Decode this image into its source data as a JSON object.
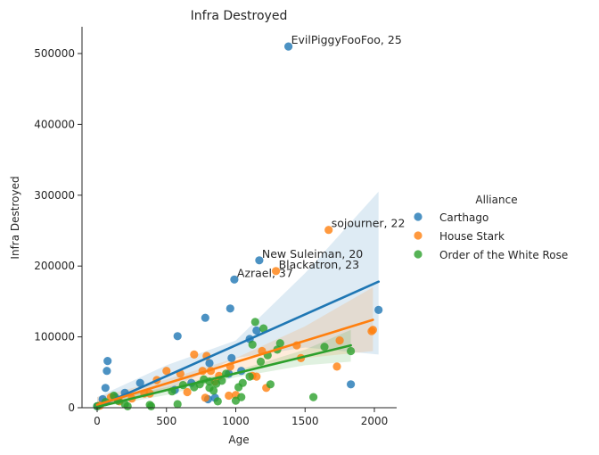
{
  "chart_data": {
    "type": "scatter",
    "title": "Infra Destroyed",
    "xlabel": "Age",
    "ylabel": "Infra Destroyed",
    "xlim": [
      -80,
      2160
    ],
    "ylim": [
      0,
      535000
    ],
    "xticks": [
      0,
      500,
      1000,
      1500,
      2000
    ],
    "yticks": [
      0,
      100000,
      200000,
      300000,
      400000,
      500000
    ],
    "grid": false,
    "legend": {
      "title": "Alliance",
      "placement": "right"
    },
    "series": [
      {
        "name": "Carthago",
        "color": "#1f77b4",
        "points": [
          [
            0,
            2000
          ],
          [
            40,
            12000
          ],
          [
            60,
            28000
          ],
          [
            70,
            52000
          ],
          [
            75,
            66000
          ],
          [
            130,
            15000
          ],
          [
            200,
            21000
          ],
          [
            310,
            35000
          ],
          [
            560,
            25000
          ],
          [
            580,
            101000
          ],
          [
            680,
            35000
          ],
          [
            780,
            127000
          ],
          [
            800,
            12000
          ],
          [
            810,
            63000
          ],
          [
            850,
            14000
          ],
          [
            950,
            48000
          ],
          [
            960,
            140000
          ],
          [
            970,
            70000
          ],
          [
            990,
            181000
          ],
          [
            1040,
            52000
          ],
          [
            1100,
            97000
          ],
          [
            1150,
            109000
          ],
          [
            1170,
            208000
          ],
          [
            1380,
            510000
          ],
          [
            1830,
            33000
          ],
          [
            2030,
            138000
          ]
        ],
        "fit": [
          [
            0,
            1000
          ],
          [
            2030,
            178000
          ]
        ],
        "band": [
          [
            0,
            -10000,
            15000
          ],
          [
            500,
            25000,
            60000
          ],
          [
            1000,
            70000,
            95000
          ],
          [
            1500,
            85000,
            190000
          ],
          [
            2030,
            75000,
            305000
          ]
        ]
      },
      {
        "name": "House Stark",
        "color": "#ff7f0e",
        "points": [
          [
            20,
            3000
          ],
          [
            100,
            15000
          ],
          [
            160,
            9000
          ],
          [
            250,
            13000
          ],
          [
            340,
            20000
          ],
          [
            380,
            20000
          ],
          [
            430,
            39000
          ],
          [
            500,
            52000
          ],
          [
            600,
            48000
          ],
          [
            650,
            22000
          ],
          [
            700,
            75000
          ],
          [
            760,
            52000
          ],
          [
            780,
            14000
          ],
          [
            790,
            73000
          ],
          [
            820,
            52000
          ],
          [
            850,
            37000
          ],
          [
            880,
            45000
          ],
          [
            950,
            17000
          ],
          [
            960,
            58000
          ],
          [
            1000,
            18000
          ],
          [
            1120,
            45000
          ],
          [
            1150,
            44000
          ],
          [
            1190,
            80000
          ],
          [
            1220,
            28000
          ],
          [
            1290,
            193000
          ],
          [
            1440,
            88000
          ],
          [
            1470,
            70000
          ],
          [
            1670,
            251000
          ],
          [
            1730,
            58000
          ],
          [
            1750,
            95000
          ],
          [
            1980,
            108000
          ],
          [
            1990,
            110000
          ]
        ],
        "fit": [
          [
            0,
            4000
          ],
          [
            1990,
            124000
          ]
        ],
        "band": [
          [
            0,
            -4000,
            15000
          ],
          [
            500,
            24000,
            40000
          ],
          [
            1000,
            52000,
            70000
          ],
          [
            1500,
            70000,
            115000
          ],
          [
            1990,
            80000,
            170000
          ]
        ]
      },
      {
        "name": "Order of the White Rose",
        "color": "#2ca02c",
        "points": [
          [
            0,
            2000
          ],
          [
            60,
            8000
          ],
          [
            120,
            17000
          ],
          [
            150,
            10000
          ],
          [
            200,
            5000
          ],
          [
            220,
            2000
          ],
          [
            380,
            4000
          ],
          [
            390,
            2000
          ],
          [
            540,
            23000
          ],
          [
            580,
            5000
          ],
          [
            620,
            32000
          ],
          [
            700,
            29000
          ],
          [
            740,
            33000
          ],
          [
            770,
            40000
          ],
          [
            810,
            37000
          ],
          [
            810,
            28000
          ],
          [
            840,
            24000
          ],
          [
            860,
            34000
          ],
          [
            870,
            9000
          ],
          [
            900,
            38000
          ],
          [
            930,
            48000
          ],
          [
            1000,
            10000
          ],
          [
            1020,
            29000
          ],
          [
            1040,
            15000
          ],
          [
            1050,
            35000
          ],
          [
            1100,
            44000
          ],
          [
            1120,
            89000
          ],
          [
            1140,
            121000
          ],
          [
            1180,
            65000
          ],
          [
            1200,
            112000
          ],
          [
            1230,
            74000
          ],
          [
            1250,
            33000
          ],
          [
            1300,
            82000
          ],
          [
            1320,
            91000
          ],
          [
            1560,
            15000
          ],
          [
            1640,
            86000
          ],
          [
            1830,
            80000
          ]
        ],
        "fit": [
          [
            0,
            1000
          ],
          [
            1830,
            88000
          ]
        ],
        "band": [
          [
            0,
            -6000,
            9000
          ],
          [
            500,
            18000,
            29000
          ],
          [
            1000,
            43000,
            52000
          ],
          [
            1500,
            60000,
            82000
          ],
          [
            1830,
            65000,
            110000
          ]
        ]
      }
    ],
    "annotations": [
      {
        "text": "EvilPiggyFooFoo, 25",
        "x": 1380,
        "y": 510000
      },
      {
        "text": "sojourner, 22",
        "x": 1670,
        "y": 251000
      },
      {
        "text": "New Suleiman, 20",
        "x": 1170,
        "y": 208000
      },
      {
        "text": "Blackatron, 23",
        "x": 1290,
        "y": 193000
      },
      {
        "text": "Azrael, 37",
        "x": 990,
        "y": 181000
      }
    ]
  }
}
